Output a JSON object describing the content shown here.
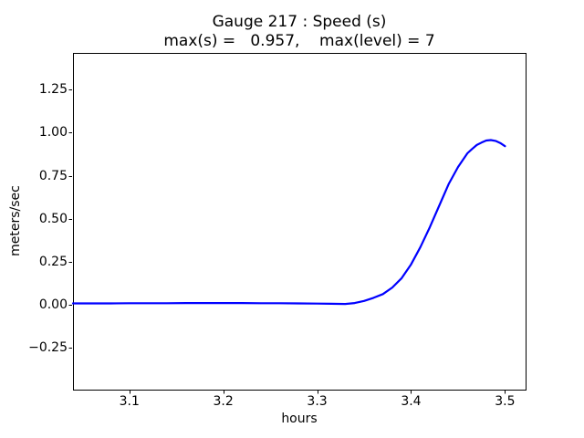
{
  "chart_data": {
    "type": "line",
    "title": "Gauge 217 : Speed (s)",
    "subtitle": "max(s) =   0.957,    max(level) = 7",
    "xlabel": "hours",
    "ylabel": "meters/sec",
    "xlim": [
      3.04,
      3.522
    ],
    "ylim": [
      -0.493,
      1.463
    ],
    "xticks": [
      3.1,
      3.2,
      3.3,
      3.4,
      3.5
    ],
    "xtick_labels": [
      "3.1",
      "3.2",
      "3.3",
      "3.4",
      "3.5"
    ],
    "yticks": [
      -0.25,
      0.0,
      0.25,
      0.5,
      0.75,
      1.0,
      1.25
    ],
    "ytick_labels": [
      "−0.25",
      "0.00",
      "0.25",
      "0.50",
      "0.75",
      "1.00",
      "1.25"
    ],
    "grid": false,
    "legend": null,
    "colors": {
      "line": "#0000ff",
      "spine": "#000000",
      "text": "#000000",
      "background": "#ffffff"
    },
    "annotations": {
      "max_s": 0.957,
      "max_level": 7
    },
    "series": [
      {
        "name": "Speed (s)",
        "color": "#0000ff",
        "x": [
          3.04,
          3.06,
          3.08,
          3.1,
          3.12,
          3.14,
          3.16,
          3.18,
          3.2,
          3.22,
          3.24,
          3.26,
          3.28,
          3.3,
          3.315,
          3.33,
          3.34,
          3.35,
          3.36,
          3.37,
          3.38,
          3.39,
          3.4,
          3.41,
          3.42,
          3.43,
          3.44,
          3.45,
          3.46,
          3.465,
          3.47,
          3.475,
          3.48,
          3.485,
          3.49,
          3.495,
          3.5
        ],
        "y": [
          0.008,
          0.008,
          0.008,
          0.009,
          0.009,
          0.009,
          0.01,
          0.01,
          0.01,
          0.01,
          0.009,
          0.009,
          0.008,
          0.007,
          0.006,
          0.005,
          0.01,
          0.022,
          0.04,
          0.062,
          0.1,
          0.155,
          0.235,
          0.335,
          0.45,
          0.575,
          0.7,
          0.8,
          0.88,
          0.905,
          0.928,
          0.942,
          0.954,
          0.957,
          0.952,
          0.94,
          0.921
        ]
      }
    ]
  }
}
